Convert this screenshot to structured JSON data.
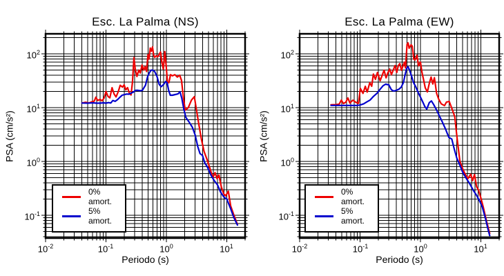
{
  "figure": {
    "background": "#ffffff",
    "frame_color": "#000000",
    "grid_color": "#000000"
  },
  "ticks": {
    "x": [
      {
        "b": "10",
        "e": "-2"
      },
      {
        "b": "10",
        "e": "-1"
      },
      {
        "b": "10",
        "e": "0"
      },
      {
        "b": "10",
        "e": "1"
      }
    ],
    "y": [
      {
        "b": "10",
        "e": "2"
      },
      {
        "b": "10",
        "e": "1"
      },
      {
        "b": "10",
        "e": "0"
      },
      {
        "b": "10",
        "e": "-1"
      }
    ]
  },
  "chart_data": [
    {
      "type": "line",
      "title": "Esc. La Palma (NS)",
      "xlabel": "Periodo (s)",
      "ylabel": "PSA (cm/s²)",
      "xscale": "log",
      "yscale": "log",
      "xlim": [
        0.01,
        20
      ],
      "ylim": [
        0.04,
        235
      ],
      "grid": true,
      "legend_position": "lower left",
      "series": [
        {
          "name": "0% amort.",
          "color": "#ee0000",
          "points": [
            [
              0.04,
              12.2
            ],
            [
              0.046,
              12.6
            ],
            [
              0.052,
              12.2
            ],
            [
              0.058,
              12.8
            ],
            [
              0.064,
              13.2
            ],
            [
              0.068,
              15.6
            ],
            [
              0.073,
              13.6
            ],
            [
              0.08,
              14.2
            ],
            [
              0.086,
              13.4
            ],
            [
              0.093,
              15
            ],
            [
              0.1,
              20
            ],
            [
              0.108,
              16.2
            ],
            [
              0.116,
              15.2
            ],
            [
              0.126,
              23.5
            ],
            [
              0.136,
              18
            ],
            [
              0.147,
              15.8
            ],
            [
              0.16,
              20
            ],
            [
              0.172,
              26
            ],
            [
              0.188,
              24
            ],
            [
              0.2,
              26.5
            ],
            [
              0.213,
              21.5
            ],
            [
              0.228,
              23.5
            ],
            [
              0.244,
              18.5
            ],
            [
              0.26,
              17.2
            ],
            [
              0.275,
              30
            ],
            [
              0.29,
              85
            ],
            [
              0.305,
              52
            ],
            [
              0.325,
              38
            ],
            [
              0.35,
              50
            ],
            [
              0.37,
              44
            ],
            [
              0.395,
              62
            ],
            [
              0.42,
              50
            ],
            [
              0.445,
              58
            ],
            [
              0.47,
              47
            ],
            [
              0.495,
              96
            ],
            [
              0.515,
              80
            ],
            [
              0.54,
              128
            ],
            [
              0.565,
              112
            ],
            [
              0.59,
              134
            ],
            [
              0.615,
              95
            ],
            [
              0.64,
              86
            ],
            [
              0.68,
              92
            ],
            [
              0.72,
              88
            ],
            [
              0.77,
              100
            ],
            [
              0.8,
              108
            ],
            [
              0.84,
              70
            ],
            [
              0.89,
              52
            ],
            [
              0.94,
              110
            ],
            [
              0.99,
              62
            ],
            [
              1.04,
              30
            ],
            [
              1.1,
              29
            ],
            [
              1.17,
              41
            ],
            [
              1.26,
              39
            ],
            [
              1.38,
              41
            ],
            [
              1.52,
              37
            ],
            [
              1.66,
              40
            ],
            [
              1.78,
              32
            ],
            [
              1.92,
              15
            ],
            [
              2.05,
              9
            ],
            [
              2.3,
              10
            ],
            [
              2.6,
              13.8
            ],
            [
              2.9,
              16
            ],
            [
              3.15,
              9
            ],
            [
              3.45,
              4.8
            ],
            [
              3.8,
              2.6
            ],
            [
              4.2,
              1.55
            ],
            [
              4.8,
              1.02
            ],
            [
              5.3,
              0.72
            ],
            [
              5.9,
              0.5
            ],
            [
              6.4,
              0.62
            ],
            [
              6.9,
              0.48
            ],
            [
              7.4,
              0.56
            ],
            [
              8.1,
              0.34
            ],
            [
              8.9,
              0.25
            ],
            [
              9.6,
              0.23
            ],
            [
              10.6,
              0.28
            ],
            [
              11.6,
              0.15
            ],
            [
              13.2,
              0.098
            ],
            [
              15,
              0.068
            ]
          ]
        },
        {
          "name": "5% amort.",
          "color": "#0000cd",
          "points": [
            [
              0.04,
              12.2
            ],
            [
              0.05,
              12.1
            ],
            [
              0.06,
              12.3
            ],
            [
              0.07,
              12.1
            ],
            [
              0.08,
              12.1
            ],
            [
              0.09,
              12.3
            ],
            [
              0.1,
              12.1
            ],
            [
              0.11,
              12.4
            ],
            [
              0.12,
              12.2
            ],
            [
              0.13,
              13.6
            ],
            [
              0.142,
              13.1
            ],
            [
              0.155,
              14.1
            ],
            [
              0.17,
              15.6
            ],
            [
              0.185,
              17
            ],
            [
              0.2,
              17.4
            ],
            [
              0.22,
              17.9
            ],
            [
              0.24,
              17.8
            ],
            [
              0.26,
              18.6
            ],
            [
              0.285,
              19.5
            ],
            [
              0.31,
              21
            ],
            [
              0.34,
              21
            ],
            [
              0.37,
              20.6
            ],
            [
              0.4,
              21
            ],
            [
              0.45,
              26
            ],
            [
              0.49,
              38
            ],
            [
              0.53,
              46
            ],
            [
              0.565,
              50
            ],
            [
              0.6,
              49.5
            ],
            [
              0.64,
              47
            ],
            [
              0.7,
              38
            ],
            [
              0.76,
              27
            ],
            [
              0.82,
              24.5
            ],
            [
              0.9,
              27
            ],
            [
              0.97,
              30.5
            ],
            [
              1.03,
              29
            ],
            [
              1.09,
              21
            ],
            [
              1.16,
              17
            ],
            [
              1.26,
              17
            ],
            [
              1.4,
              17.5
            ],
            [
              1.55,
              18
            ],
            [
              1.68,
              19.8
            ],
            [
              1.8,
              15
            ],
            [
              1.95,
              9.2
            ],
            [
              2.1,
              6.6
            ],
            [
              2.4,
              5.3
            ],
            [
              2.7,
              4.3
            ],
            [
              3.0,
              3.1
            ],
            [
              3.3,
              1.9
            ],
            [
              3.6,
              1.4
            ],
            [
              3.95,
              1.3
            ],
            [
              4.3,
              0.95
            ],
            [
              4.8,
              0.78
            ],
            [
              5.5,
              0.55
            ],
            [
              6.2,
              0.44
            ],
            [
              7.0,
              0.37
            ],
            [
              7.9,
              0.27
            ],
            [
              8.9,
              0.22
            ],
            [
              10,
              0.2
            ],
            [
              11.5,
              0.135
            ],
            [
              13,
              0.092
            ],
            [
              15,
              0.066
            ]
          ]
        }
      ]
    },
    {
      "type": "line",
      "title": "Esc. La Palma (EW)",
      "xlabel": "Periodo (s)",
      "ylabel": "PSA (cm/s²)",
      "xscale": "log",
      "yscale": "log",
      "xlim": [
        0.01,
        20
      ],
      "ylim": [
        0.04,
        235
      ],
      "grid": true,
      "legend_position": "lower left",
      "series": [
        {
          "name": "0% amort.",
          "color": "#ee0000",
          "points": [
            [
              0.033,
              11.3
            ],
            [
              0.04,
              11.4
            ],
            [
              0.045,
              11.6
            ],
            [
              0.049,
              13.8
            ],
            [
              0.053,
              11.9
            ],
            [
              0.058,
              12.6
            ],
            [
              0.063,
              15.1
            ],
            [
              0.068,
              12.2
            ],
            [
              0.076,
              13.8
            ],
            [
              0.085,
              12.6
            ],
            [
              0.094,
              12
            ],
            [
              0.101,
              22.7
            ],
            [
              0.112,
              18.4
            ],
            [
              0.122,
              24.9
            ],
            [
              0.131,
              19.5
            ],
            [
              0.145,
              29
            ],
            [
              0.156,
              25
            ],
            [
              0.166,
              42
            ],
            [
              0.18,
              33.5
            ],
            [
              0.194,
              45
            ],
            [
              0.215,
              31.5
            ],
            [
              0.233,
              40
            ],
            [
              0.25,
              49.5
            ],
            [
              0.27,
              35.8
            ],
            [
              0.29,
              45
            ],
            [
              0.31,
              52
            ],
            [
              0.33,
              41
            ],
            [
              0.355,
              50
            ],
            [
              0.38,
              60.5
            ],
            [
              0.405,
              45
            ],
            [
              0.43,
              60
            ],
            [
              0.455,
              66
            ],
            [
              0.485,
              49.5
            ],
            [
              0.52,
              62
            ],
            [
              0.545,
              70
            ],
            [
              0.565,
              55
            ],
            [
              0.6,
              150
            ],
            [
              0.625,
              160
            ],
            [
              0.65,
              127
            ],
            [
              0.7,
              147
            ],
            [
              0.735,
              138
            ],
            [
              0.775,
              80
            ],
            [
              0.81,
              77
            ],
            [
              0.875,
              94
            ],
            [
              0.93,
              60
            ],
            [
              1.0,
              70
            ],
            [
              1.06,
              45
            ],
            [
              1.12,
              34
            ],
            [
              1.2,
              23.5
            ],
            [
              1.3,
              19.6
            ],
            [
              1.42,
              30
            ],
            [
              1.5,
              37
            ],
            [
              1.6,
              27.5
            ],
            [
              1.7,
              36
            ],
            [
              1.85,
              18.4
            ],
            [
              2.0,
              14.5
            ],
            [
              2.2,
              11.8
            ],
            [
              2.5,
              10.9
            ],
            [
              2.7,
              12.7
            ],
            [
              3.0,
              13
            ],
            [
              3.3,
              9.7
            ],
            [
              3.7,
              6.8
            ],
            [
              4.05,
              2.6
            ],
            [
              4.5,
              1.0
            ],
            [
              5.0,
              0.73
            ],
            [
              5.5,
              0.58
            ],
            [
              6.1,
              0.48
            ],
            [
              6.8,
              0.58
            ],
            [
              7.3,
              0.44
            ],
            [
              7.85,
              0.57
            ],
            [
              8.5,
              0.34
            ],
            [
              9.2,
              0.29
            ],
            [
              10,
              0.21
            ],
            [
              11,
              0.14
            ],
            [
              12.5,
              0.075
            ],
            [
              14,
              0.046
            ]
          ]
        },
        {
          "name": "5% amort.",
          "color": "#0000cd",
          "points": [
            [
              0.033,
              11
            ],
            [
              0.045,
              11
            ],
            [
              0.06,
              11
            ],
            [
              0.075,
              11
            ],
            [
              0.09,
              11
            ],
            [
              0.1,
              11.2
            ],
            [
              0.115,
              11.8
            ],
            [
              0.13,
              12.8
            ],
            [
              0.146,
              13.8
            ],
            [
              0.165,
              16
            ],
            [
              0.19,
              18.4
            ],
            [
              0.215,
              22
            ],
            [
              0.24,
              25.5
            ],
            [
              0.265,
              27.3
            ],
            [
              0.3,
              26.5
            ],
            [
              0.33,
              21.5
            ],
            [
              0.36,
              20.3
            ],
            [
              0.4,
              21
            ],
            [
              0.44,
              22
            ],
            [
              0.48,
              24
            ],
            [
              0.52,
              29
            ],
            [
              0.555,
              40
            ],
            [
              0.59,
              53
            ],
            [
              0.62,
              58
            ],
            [
              0.655,
              51
            ],
            [
              0.71,
              39
            ],
            [
              0.77,
              29
            ],
            [
              0.84,
              24
            ],
            [
              0.92,
              19
            ],
            [
              1.0,
              15.7
            ],
            [
              1.1,
              12.5
            ],
            [
              1.18,
              10.5
            ],
            [
              1.27,
              9.4
            ],
            [
              1.4,
              12.4
            ],
            [
              1.52,
              13.3
            ],
            [
              1.65,
              11.5
            ],
            [
              1.8,
              9.6
            ],
            [
              2.0,
              7.5
            ],
            [
              2.3,
              5.4
            ],
            [
              2.6,
              4.0
            ],
            [
              2.95,
              2.8
            ],
            [
              3.3,
              2.6
            ],
            [
              3.6,
              1.75
            ],
            [
              4.0,
              1.15
            ],
            [
              4.5,
              0.85
            ],
            [
              5.0,
              0.63
            ],
            [
              5.7,
              0.49
            ],
            [
              6.5,
              0.39
            ],
            [
              7.5,
              0.29
            ],
            [
              8.5,
              0.235
            ],
            [
              9.5,
              0.185
            ],
            [
              10.5,
              0.145
            ],
            [
              12,
              0.085
            ],
            [
              13.3,
              0.052
            ],
            [
              14,
              0.042
            ]
          ]
        }
      ]
    }
  ]
}
